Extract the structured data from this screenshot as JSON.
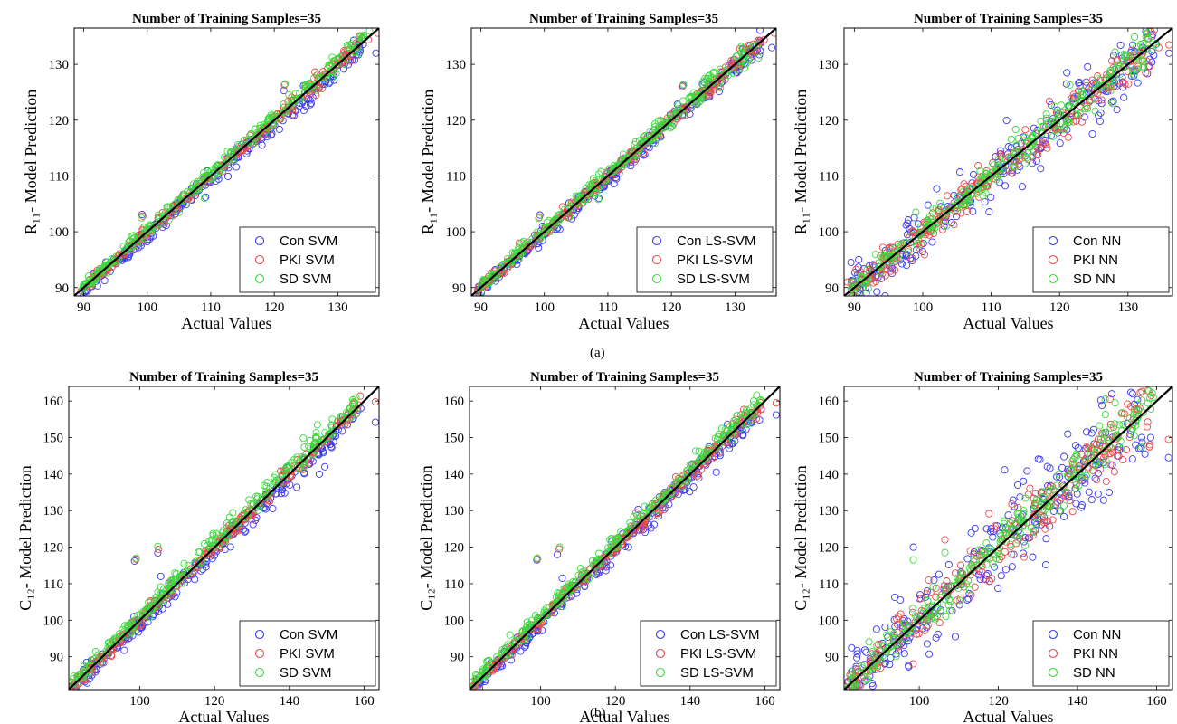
{
  "figure": {
    "captions": [
      "(a)",
      "(b)"
    ]
  },
  "chart_data": [
    {
      "type": "scatter",
      "title": "Number of Training Samples=35",
      "xlabel": "Actual Values",
      "ylabel": "R₁₁- Model Prediction",
      "xlim": [
        88.5,
        136.5
      ],
      "ylim": [
        88.5,
        136.5
      ],
      "xticks": [
        90,
        100,
        110,
        120,
        130
      ],
      "yticks": [
        90,
        100,
        110,
        120,
        130
      ],
      "grid": false,
      "legend_position": "bottom-right",
      "identity_line": true,
      "series": [
        {
          "name": "Con SVM",
          "color": "#3a3af0",
          "spread": 0.55,
          "bias": -0.5,
          "outliers": [
            [
              99.2,
              103.1
            ],
            [
              109.2,
              106.2
            ],
            [
              121.5,
              125.3
            ],
            [
              133.5,
              132.2
            ],
            [
              136.0,
              132.0
            ]
          ]
        },
        {
          "name": "PKI SVM",
          "color": "#e84a4a",
          "spread": 0.4,
          "bias": 0.0,
          "outliers": [
            [
              99.3,
              102.8
            ],
            [
              121.6,
              126.3
            ],
            [
              136.3,
              135.6
            ],
            [
              134.8,
              134.4
            ]
          ]
        },
        {
          "name": "SD SVM",
          "color": "#3ed93e",
          "spread": 0.5,
          "bias": 0.3,
          "outliers": [
            [
              99.1,
              102.5
            ],
            [
              109.0,
              106.0
            ],
            [
              121.7,
              126.5
            ],
            [
              131.5,
              133.4
            ],
            [
              135.0,
              136.0
            ]
          ]
        }
      ]
    },
    {
      "type": "scatter",
      "title": "Number of Training Samples=35",
      "xlabel": "Actual Values",
      "ylabel": "R₁₁- Model Prediction",
      "xlim": [
        88.5,
        136.5
      ],
      "ylim": [
        88.5,
        136.5
      ],
      "xticks": [
        90,
        100,
        110,
        120,
        130
      ],
      "yticks": [
        90,
        100,
        110,
        120,
        130
      ],
      "grid": false,
      "legend_position": "bottom-right",
      "identity_line": true,
      "series": [
        {
          "name": "Con LS-SVM",
          "color": "#3a3af0",
          "spread": 0.5,
          "bias": -0.3,
          "outliers": [
            [
              99.3,
              103.0
            ],
            [
              108.6,
              106.0
            ],
            [
              121.8,
              126.2
            ],
            [
              135.8,
              133.0
            ],
            [
              134.0,
              132.4
            ]
          ]
        },
        {
          "name": "PKI LS-SVM",
          "color": "#e84a4a",
          "spread": 0.4,
          "bias": 0.0,
          "outliers": [
            [
              99.2,
              102.6
            ],
            [
              121.7,
              126.0
            ],
            [
              136.2,
              135.6
            ],
            [
              134.6,
              134.4
            ]
          ]
        },
        {
          "name": "SD LS-SVM",
          "color": "#3ed93e",
          "spread": 0.5,
          "bias": 0.2,
          "outliers": [
            [
              99.1,
              102.4
            ],
            [
              108.5,
              105.8
            ],
            [
              121.9,
              126.4
            ],
            [
              131.0,
              133.2
            ]
          ]
        }
      ]
    },
    {
      "type": "scatter",
      "title": "Number of Training Samples=35",
      "xlabel": "Actual Values",
      "ylabel": "R₁₁- Model Prediction",
      "xlim": [
        88.5,
        136.5
      ],
      "ylim": [
        88.5,
        136.5
      ],
      "xticks": [
        90,
        100,
        110,
        120,
        130
      ],
      "yticks": [
        90,
        100,
        110,
        120,
        130
      ],
      "grid": false,
      "legend_position": "bottom-right",
      "identity_line": true,
      "series": [
        {
          "name": "Con NN",
          "color": "#3a3af0",
          "spread": 1.7,
          "bias": 0.0,
          "outliers": [
            [
              89.5,
              94.5
            ],
            [
              94.5,
              88.5
            ],
            [
              121.0,
              126.5
            ],
            [
              136.0,
              132.0
            ],
            [
              133.5,
              135.0
            ]
          ]
        },
        {
          "name": "PKI NN",
          "color": "#e84a4a",
          "spread": 1.1,
          "bias": 0.0,
          "outliers": [
            [
              89.0,
              91.0
            ],
            [
              136.0,
              133.5
            ],
            [
              134.5,
              133.0
            ]
          ]
        },
        {
          "name": "SD NN",
          "color": "#3ed93e",
          "spread": 0.9,
          "bias": 0.2,
          "outliers": [
            [
              99.0,
              103.5
            ],
            [
              121.5,
              126.3
            ],
            [
              133.0,
              134.5
            ]
          ]
        }
      ]
    },
    {
      "type": "scatter",
      "title": "Number of Training Samples=35",
      "xlabel": "Actual Values",
      "ylabel": "C₁₂- Model Prediction",
      "xlim": [
        81,
        164
      ],
      "ylim": [
        81,
        164
      ],
      "xticks": [
        100,
        120,
        140,
        160
      ],
      "yticks": [
        90,
        100,
        110,
        120,
        130,
        140,
        150,
        160
      ],
      "grid": false,
      "legend_position": "bottom-right",
      "identity_line": true,
      "series": [
        {
          "name": "Con SVM",
          "color": "#3a3af0",
          "spread": 1.0,
          "bias": -0.8,
          "outliers": [
            [
              98.6,
              116.2
            ],
            [
              104.8,
              118.4
            ],
            [
              105.6,
              112.0
            ],
            [
              148.0,
              140.0
            ],
            [
              149.5,
              142.0
            ],
            [
              155.5,
              153.5
            ],
            [
              163.0,
              154.2
            ]
          ]
        },
        {
          "name": "PKI SVM",
          "color": "#e84a4a",
          "spread": 0.7,
          "bias": 0.0,
          "outliers": [
            [
              99.0,
              116.7
            ],
            [
              105.0,
              119.4
            ],
            [
              156.0,
              155.0
            ],
            [
              163.0,
              159.8
            ],
            [
              158.0,
              156.5
            ]
          ]
        },
        {
          "name": "SD SVM",
          "color": "#3ed93e",
          "spread": 0.9,
          "bias": 0.8,
          "outliers": [
            [
              99.0,
              117.0
            ],
            [
              104.8,
              120.2
            ],
            [
              147.5,
              153.5
            ],
            [
              151.5,
              155.0
            ],
            [
              157.0,
              160.3
            ],
            [
              81.5,
              83.0
            ]
          ]
        }
      ]
    },
    {
      "type": "scatter",
      "title": "Number of Training Samples=35",
      "xlabel": "Actual Values",
      "ylabel": "C₁₂- Model Prediction",
      "xlim": [
        81,
        164
      ],
      "ylim": [
        81,
        164
      ],
      "xticks": [
        100,
        120,
        140,
        160
      ],
      "yticks": [
        90,
        100,
        110,
        120,
        130,
        140,
        150,
        160
      ],
      "grid": false,
      "legend_position": "bottom-right",
      "identity_line": true,
      "series": [
        {
          "name": "Con LS-SVM",
          "color": "#3a3af0",
          "spread": 0.9,
          "bias": -0.7,
          "outliers": [
            [
              99.0,
              116.5
            ],
            [
              104.5,
              118.0
            ],
            [
              105.8,
              111.5
            ],
            [
              147.0,
              140.5
            ],
            [
              152.0,
              149.0
            ],
            [
              163.0,
              156.2
            ]
          ]
        },
        {
          "name": "PKI LS-SVM",
          "color": "#e84a4a",
          "spread": 0.7,
          "bias": 0.0,
          "outliers": [
            [
              99.2,
              116.8
            ],
            [
              105.0,
              119.5
            ],
            [
              163.0,
              159.5
            ],
            [
              156.5,
              155.0
            ]
          ]
        },
        {
          "name": "SD LS-SVM",
          "color": "#3ed93e",
          "spread": 0.8,
          "bias": 0.7,
          "outliers": [
            [
              99.1,
              117.0
            ],
            [
              105.1,
              120.0
            ],
            [
              148.5,
              152.5
            ],
            [
              152.5,
              156.0
            ],
            [
              157.0,
              160.0
            ],
            [
              81.5,
              83.0
            ]
          ]
        }
      ]
    },
    {
      "type": "scatter",
      "title": "Number of Training Samples=35",
      "xlabel": "Actual Values",
      "ylabel": "C₁₂- Model Prediction",
      "xlim": [
        81,
        164
      ],
      "ylim": [
        81,
        164
      ],
      "xticks": [
        100,
        120,
        140,
        160
      ],
      "yticks": [
        90,
        100,
        110,
        120,
        130,
        140,
        150,
        160
      ],
      "grid": false,
      "legend_position": "bottom-right",
      "identity_line": true,
      "series": [
        {
          "name": "Con NN",
          "color": "#3a3af0",
          "spread": 4.2,
          "bias": 0.0,
          "outliers": [
            [
              83.0,
              86.0
            ],
            [
              98.5,
              120.0
            ],
            [
              130.5,
              144.0
            ],
            [
              163.0,
              144.5
            ],
            [
              158.5,
              150.0
            ],
            [
              148.0,
              135.0
            ]
          ]
        },
        {
          "name": "PKI NN",
          "color": "#e84a4a",
          "spread": 2.6,
          "bias": 0.0,
          "outliers": [
            [
              82.0,
              83.0
            ],
            [
              106.5,
              122.0
            ],
            [
              163.0,
              149.5
            ],
            [
              150.0,
              145.0
            ]
          ]
        },
        {
          "name": "SD NN",
          "color": "#3ed93e",
          "spread": 1.8,
          "bias": 0.5,
          "outliers": [
            [
              98.5,
              116.5
            ],
            [
              106.5,
              118.5
            ],
            [
              147.0,
              160.5
            ],
            [
              149.5,
              159.5
            ],
            [
              84.0,
              81.5
            ]
          ]
        }
      ]
    }
  ]
}
